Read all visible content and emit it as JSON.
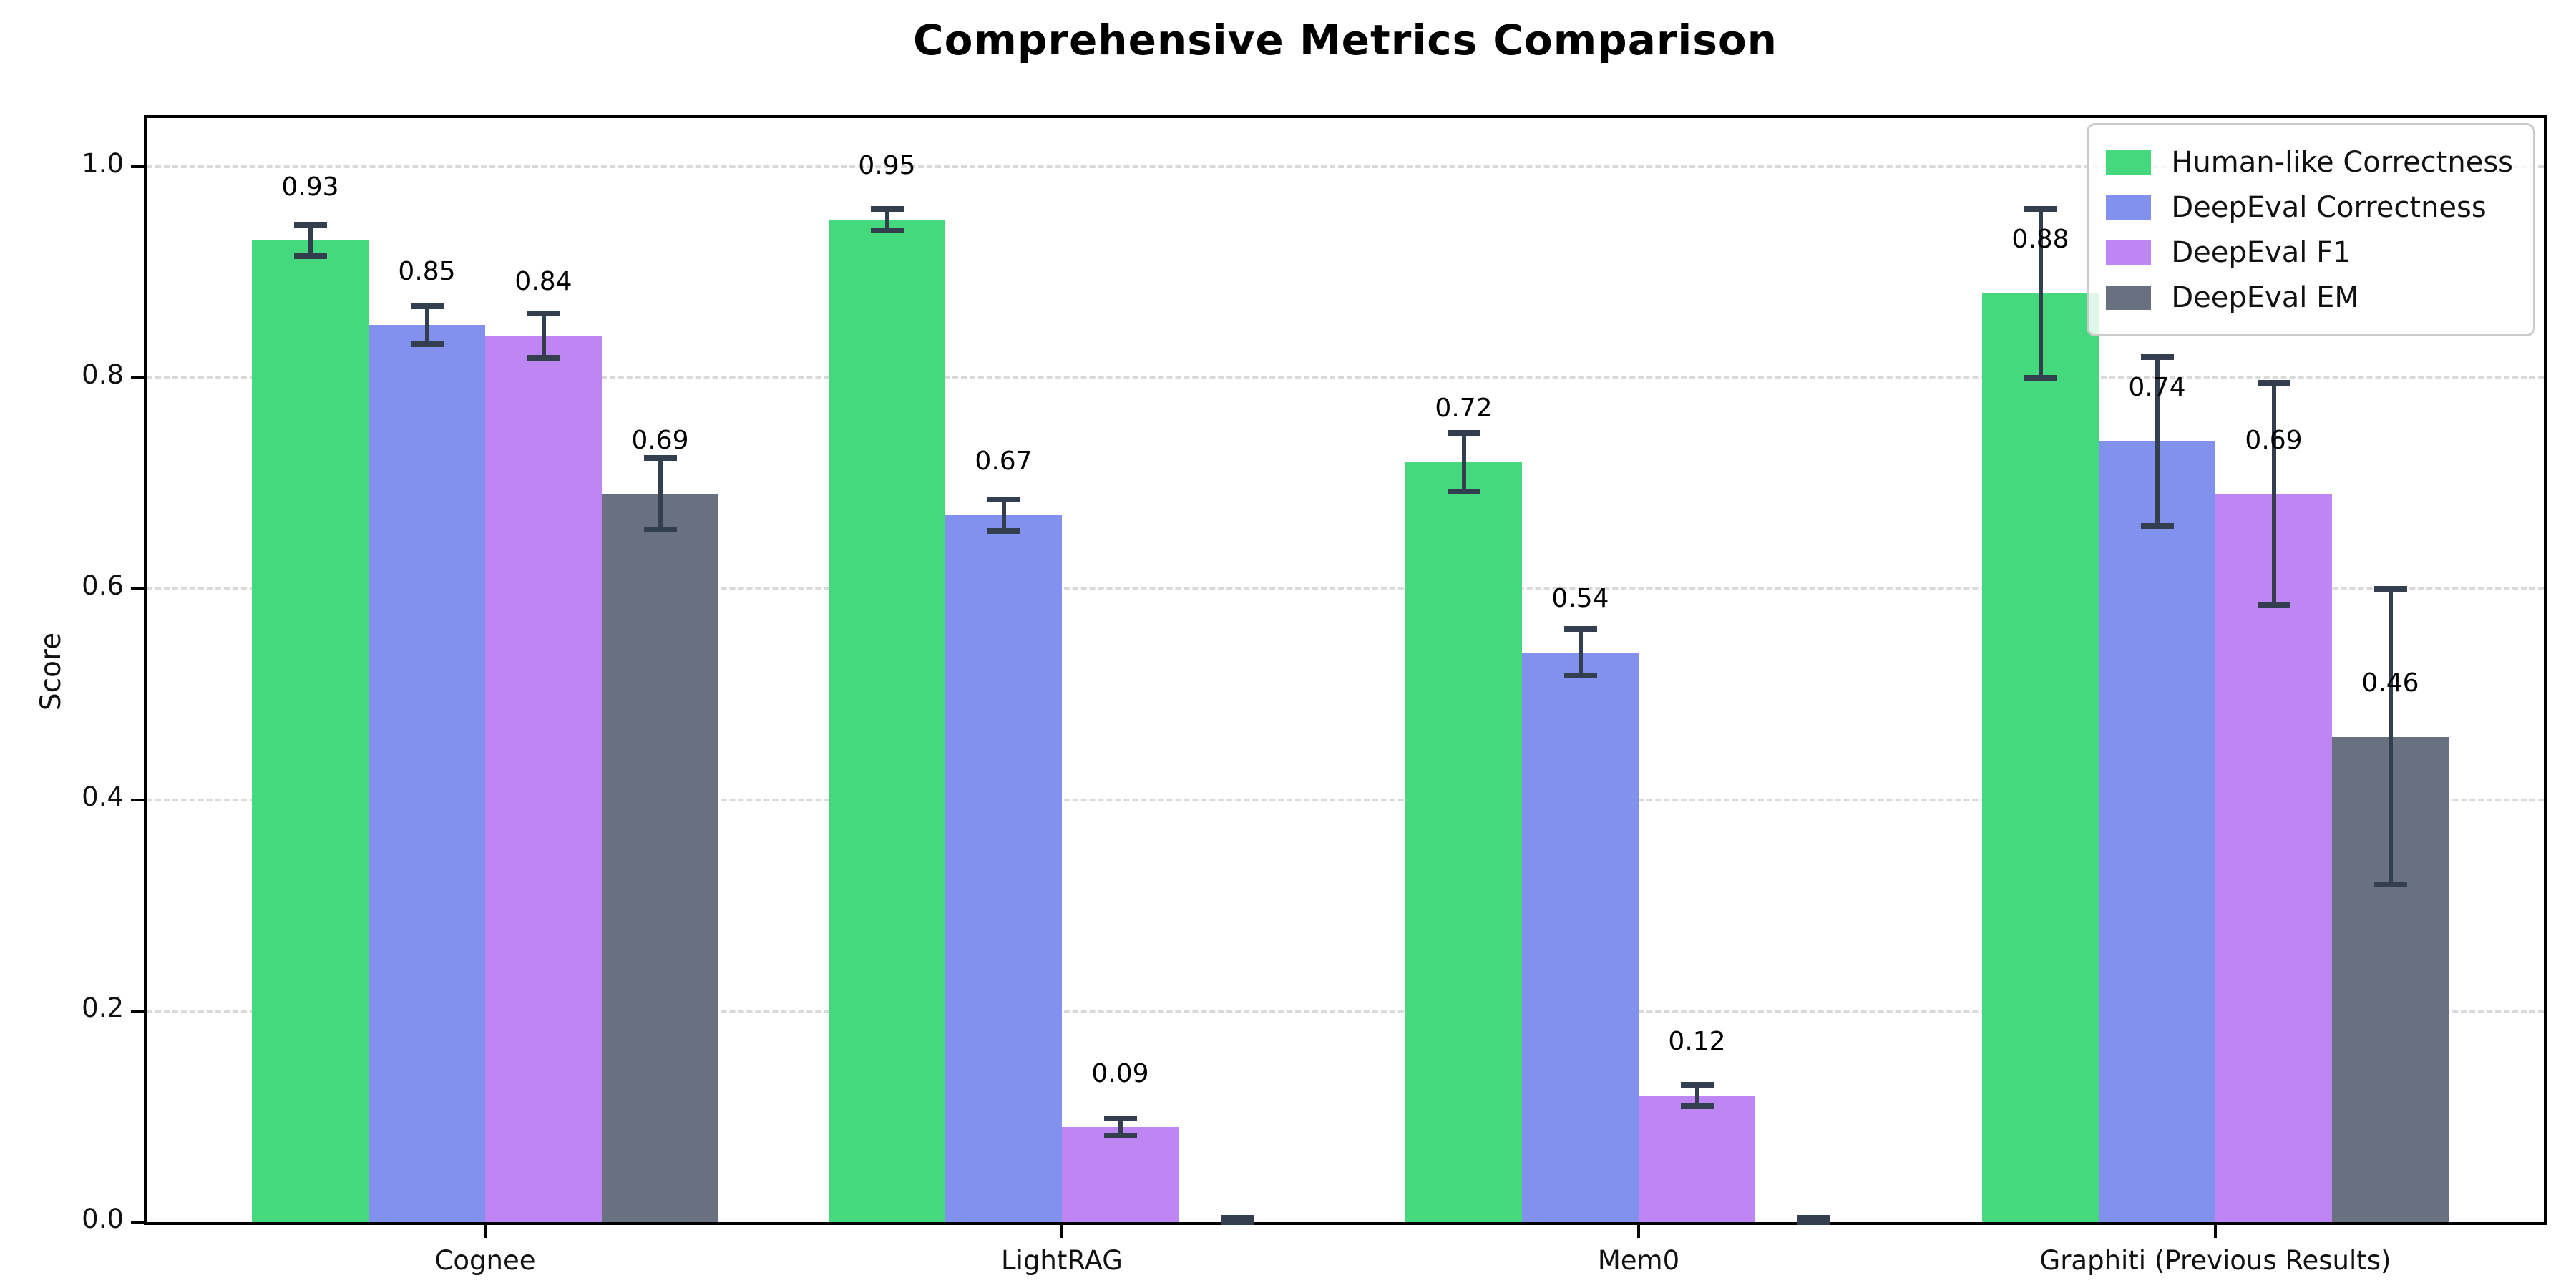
{
  "title": "Comprehensive Metrics Comparison",
  "axes": {
    "ylabel": "Score",
    "ytick_labels": [
      "0.0",
      "0.2",
      "0.4",
      "0.6",
      "0.8",
      "1.0"
    ],
    "ytick_values": [
      0.0,
      0.2,
      0.4,
      0.6,
      0.8,
      1.0
    ]
  },
  "chart_data": {
    "type": "bar",
    "title": "Comprehensive Metrics Comparison",
    "xlabel": "",
    "ylabel": "Score",
    "ylim": [
      0,
      1.046
    ],
    "grid": "horizontal dashed gridlines at 0.2 intervals",
    "legend_position": "upper right",
    "bar_label_format": "two decimals above bar",
    "categories": [
      "Cognee",
      "LightRAG",
      "Mem0",
      "Graphiti (Previous Results)"
    ],
    "series": [
      {
        "name": "Human-like Correctness",
        "color": "#44d97d",
        "values": [
          0.93,
          0.95,
          0.72,
          0.88
        ],
        "errors": [
          0.015,
          0.01,
          0.028,
          0.08
        ]
      },
      {
        "name": "DeepEval Correctness",
        "color": "#8290ee",
        "values": [
          0.85,
          0.67,
          0.54,
          0.74
        ],
        "errors": [
          0.018,
          0.015,
          0.022,
          0.08
        ]
      },
      {
        "name": "DeepEval F1",
        "color": "#bd86f2",
        "values": [
          0.84,
          0.09,
          0.12,
          0.69
        ],
        "errors": [
          0.021,
          0.008,
          0.01,
          0.105
        ]
      },
      {
        "name": "DeepEval EM",
        "color": "#697180",
        "values": [
          0.69,
          0.0,
          0.0,
          0.46
        ],
        "errors": [
          0.034,
          0.004,
          0.004,
          0.14
        ]
      }
    ],
    "error_bar_color": "#333f4e",
    "background_color": "#ffffff",
    "gridline_color": "#d9d9d9"
  }
}
